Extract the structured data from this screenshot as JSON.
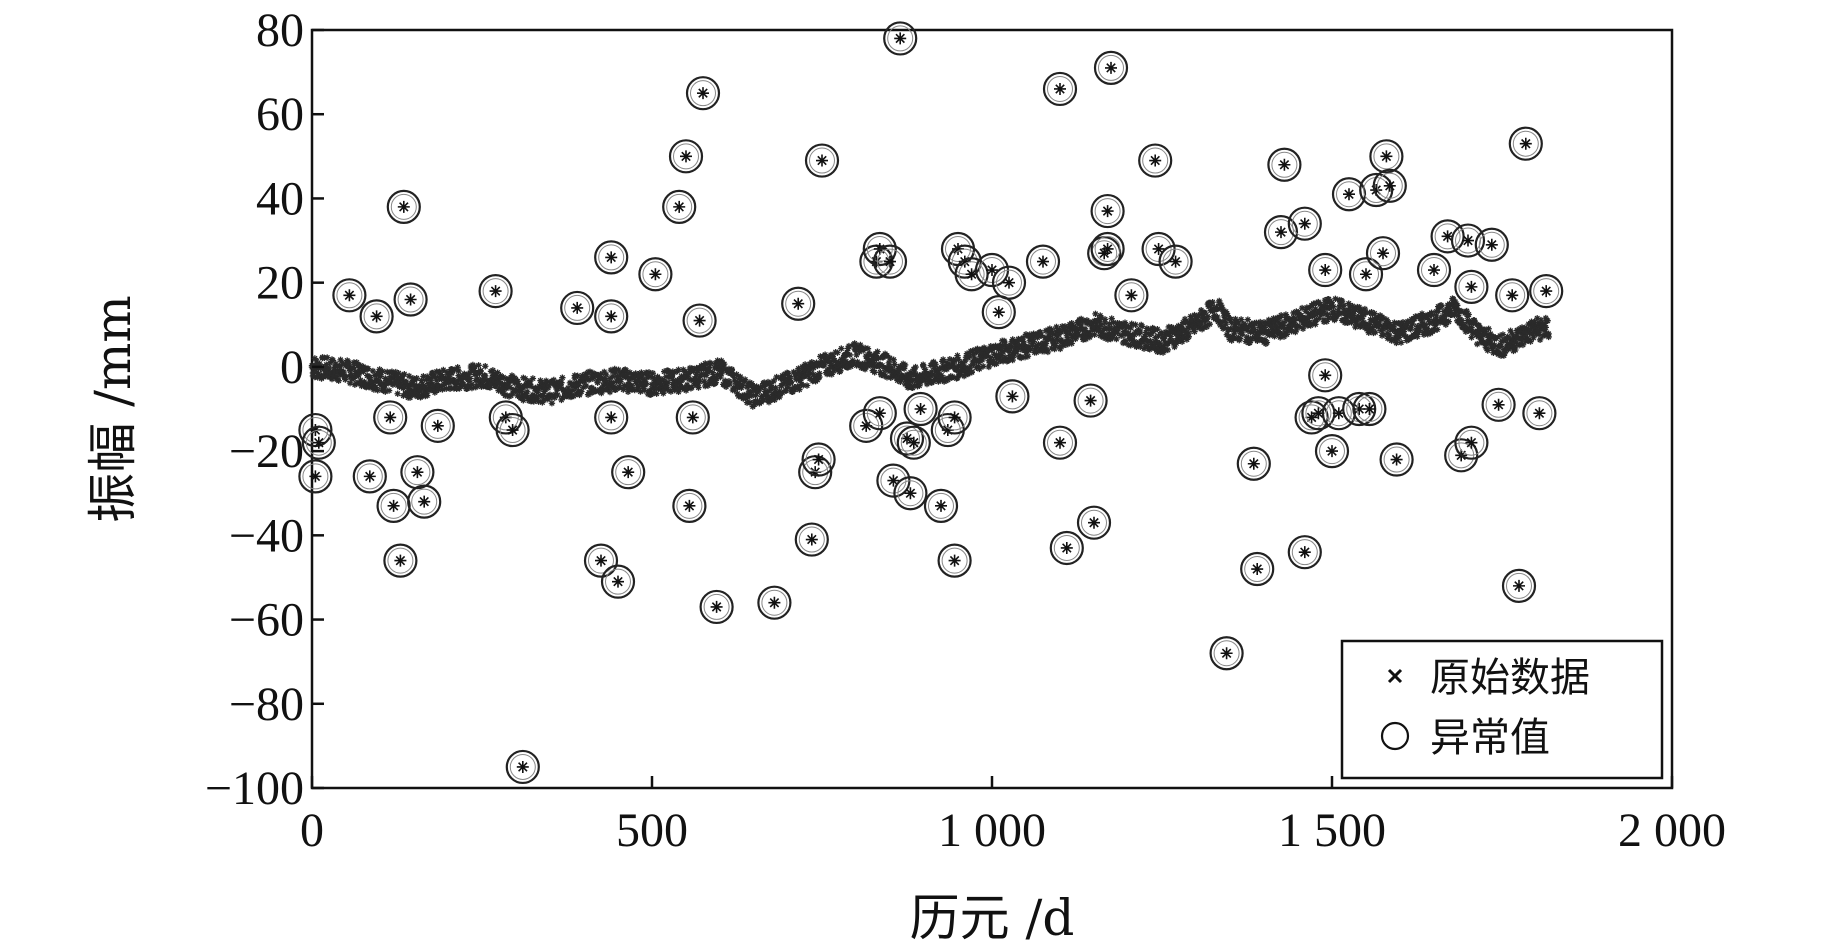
{
  "chart_data": {
    "type": "scatter",
    "title": "",
    "xlabel": "历元 /d",
    "ylabel": "振幅 /mm",
    "xlim": [
      0,
      2000
    ],
    "ylim": [
      -100,
      80
    ],
    "x_ticks": [
      0,
      500,
      1000,
      1500,
      2000
    ],
    "x_tick_labels": [
      "0",
      "500",
      "1 000",
      "1 500",
      "2 000"
    ],
    "y_ticks": [
      -100,
      -80,
      -60,
      -40,
      -20,
      0,
      20,
      40,
      60,
      80
    ],
    "y_tick_labels": [
      "−100",
      "−80",
      "−60",
      "−40",
      "−20",
      "0",
      "20",
      "40",
      "60",
      "80"
    ],
    "grid": false,
    "legend_position": "bottom-right",
    "legend": [
      {
        "label": "原始数据",
        "marker": "x"
      },
      {
        "label": "异常值",
        "marker": "circle"
      }
    ],
    "trend": [
      [
        0,
        0
      ],
      [
        50,
        -1
      ],
      [
        100,
        -3
      ],
      [
        150,
        -5
      ],
      [
        200,
        -3
      ],
      [
        250,
        -2
      ],
      [
        300,
        -5
      ],
      [
        350,
        -6
      ],
      [
        400,
        -4
      ],
      [
        450,
        -3
      ],
      [
        500,
        -4
      ],
      [
        550,
        -3
      ],
      [
        600,
        -1
      ],
      [
        650,
        -7
      ],
      [
        700,
        -4
      ],
      [
        750,
        0
      ],
      [
        800,
        3
      ],
      [
        850,
        0
      ],
      [
        880,
        -3
      ],
      [
        950,
        0
      ],
      [
        1000,
        3
      ],
      [
        1050,
        5
      ],
      [
        1100,
        7
      ],
      [
        1150,
        10
      ],
      [
        1200,
        8
      ],
      [
        1250,
        6
      ],
      [
        1300,
        10
      ],
      [
        1330,
        14
      ],
      [
        1350,
        9
      ],
      [
        1400,
        8
      ],
      [
        1450,
        11
      ],
      [
        1500,
        14
      ],
      [
        1550,
        11
      ],
      [
        1600,
        8
      ],
      [
        1650,
        11
      ],
      [
        1680,
        14
      ],
      [
        1720,
        7
      ],
      [
        1750,
        5
      ],
      [
        1800,
        9
      ],
      [
        1820,
        9
      ]
    ],
    "outliers": [
      [
        5,
        -15
      ],
      [
        10,
        -18
      ],
      [
        5,
        -26
      ],
      [
        55,
        17
      ],
      [
        95,
        12
      ],
      [
        85,
        -26
      ],
      [
        115,
        -12
      ],
      [
        120,
        -33
      ],
      [
        130,
        -46
      ],
      [
        135,
        38
      ],
      [
        145,
        16
      ],
      [
        155,
        -25
      ],
      [
        165,
        -32
      ],
      [
        185,
        -14
      ],
      [
        270,
        18
      ],
      [
        285,
        -12
      ],
      [
        295,
        -15
      ],
      [
        310,
        -95
      ],
      [
        390,
        14
      ],
      [
        425,
        -46
      ],
      [
        440,
        26
      ],
      [
        440,
        12
      ],
      [
        440,
        -12
      ],
      [
        450,
        -51
      ],
      [
        465,
        -25
      ],
      [
        505,
        22
      ],
      [
        540,
        38
      ],
      [
        550,
        50
      ],
      [
        555,
        -33
      ],
      [
        560,
        -12
      ],
      [
        570,
        11
      ],
      [
        575,
        65
      ],
      [
        595,
        -57
      ],
      [
        680,
        -56
      ],
      [
        715,
        15
      ],
      [
        735,
        -41
      ],
      [
        740,
        -25
      ],
      [
        745,
        -22
      ],
      [
        750,
        49
      ],
      [
        815,
        -14
      ],
      [
        830,
        25
      ],
      [
        835,
        28
      ],
      [
        835,
        -11
      ],
      [
        850,
        25
      ],
      [
        855,
        -27
      ],
      [
        865,
        78
      ],
      [
        875,
        -17
      ],
      [
        880,
        -30
      ],
      [
        885,
        -18
      ],
      [
        895,
        -10
      ],
      [
        925,
        -33
      ],
      [
        935,
        -15
      ],
      [
        945,
        -12
      ],
      [
        950,
        28
      ],
      [
        945,
        -46
      ],
      [
        960,
        25
      ],
      [
        970,
        22
      ],
      [
        1000,
        23
      ],
      [
        1010,
        13
      ],
      [
        1025,
        20
      ],
      [
        1030,
        -7
      ],
      [
        1075,
        25
      ],
      [
        1100,
        66
      ],
      [
        1100,
        -18
      ],
      [
        1110,
        -43
      ],
      [
        1145,
        -8
      ],
      [
        1150,
        -37
      ],
      [
        1165,
        27
      ],
      [
        1170,
        37
      ],
      [
        1170,
        28
      ],
      [
        1175,
        71
      ],
      [
        1205,
        17
      ],
      [
        1240,
        49
      ],
      [
        1245,
        28
      ],
      [
        1270,
        25
      ],
      [
        1345,
        -68
      ],
      [
        1385,
        -23
      ],
      [
        1390,
        -48
      ],
      [
        1425,
        32
      ],
      [
        1430,
        48
      ],
      [
        1460,
        34
      ],
      [
        1460,
        -44
      ],
      [
        1470,
        -12
      ],
      [
        1480,
        -11
      ],
      [
        1490,
        -2
      ],
      [
        1490,
        23
      ],
      [
        1500,
        -20
      ],
      [
        1510,
        -11
      ],
      [
        1525,
        41
      ],
      [
        1540,
        -10
      ],
      [
        1550,
        22
      ],
      [
        1555,
        -10
      ],
      [
        1565,
        42
      ],
      [
        1575,
        27
      ],
      [
        1580,
        50
      ],
      [
        1585,
        43
      ],
      [
        1595,
        -22
      ],
      [
        1650,
        23
      ],
      [
        1670,
        31
      ],
      [
        1690,
        -21
      ],
      [
        1700,
        30
      ],
      [
        1705,
        -18
      ],
      [
        1705,
        19
      ],
      [
        1735,
        29
      ],
      [
        1745,
        -9
      ],
      [
        1765,
        17
      ],
      [
        1775,
        -52
      ],
      [
        1785,
        53
      ],
      [
        1805,
        -11
      ],
      [
        1815,
        18
      ]
    ]
  }
}
